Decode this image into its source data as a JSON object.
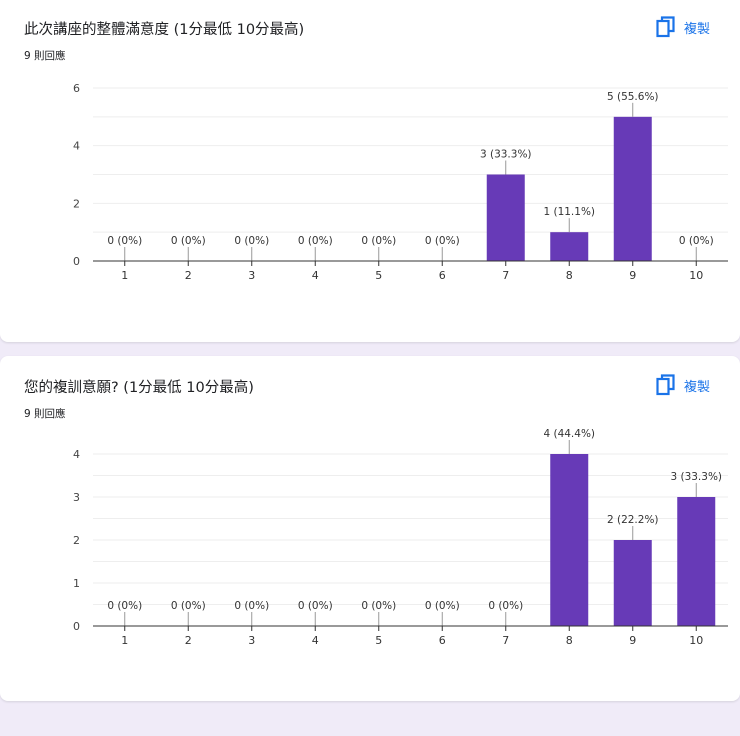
{
  "questions": [
    {
      "title": "此次講座的整體滿意度 (1分最低 10分最高)",
      "response_count": "9 則回應",
      "copy_label": "複製",
      "chart_data": {
        "type": "bar",
        "categories": [
          "1",
          "2",
          "3",
          "4",
          "5",
          "6",
          "7",
          "8",
          "9",
          "10"
        ],
        "values": [
          0,
          0,
          0,
          0,
          0,
          0,
          3,
          1,
          5,
          0
        ],
        "data_labels": [
          "0 (0%)",
          "0 (0%)",
          "0 (0%)",
          "0 (0%)",
          "0 (0%)",
          "0 (0%)",
          "3 (33.3%)",
          "1 (11.1%)",
          "5 (55.6%)",
          "0 (0%)"
        ],
        "y_ticks": [
          "0",
          "2",
          "4",
          "6"
        ],
        "ylim": [
          0,
          6
        ],
        "grid": true,
        "bar_color": "#673ab7"
      }
    },
    {
      "title": "您的複訓意願? (1分最低 10分最高)",
      "response_count": "9 則回應",
      "copy_label": "複製",
      "chart_data": {
        "type": "bar",
        "categories": [
          "1",
          "2",
          "3",
          "4",
          "5",
          "6",
          "7",
          "8",
          "9",
          "10"
        ],
        "values": [
          0,
          0,
          0,
          0,
          0,
          0,
          0,
          4,
          2,
          3
        ],
        "data_labels": [
          "0 (0%)",
          "0 (0%)",
          "0 (0%)",
          "0 (0%)",
          "0 (0%)",
          "0 (0%)",
          "0 (0%)",
          "4 (44.4%)",
          "2 (22.2%)",
          "3 (33.3%)"
        ],
        "y_ticks": [
          "0",
          "1",
          "2",
          "3",
          "4"
        ],
        "ylim": [
          0,
          4
        ],
        "grid": true,
        "bar_color": "#673ab7"
      }
    }
  ]
}
